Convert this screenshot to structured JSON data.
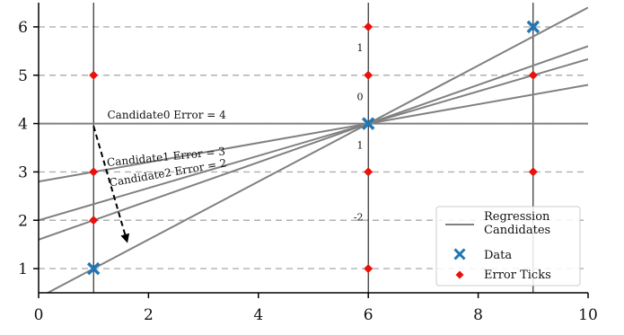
{
  "chart_data": {
    "type": "line",
    "xlim": [
      0,
      10
    ],
    "ylim": [
      0.5,
      6.5
    ],
    "x_ticks": [
      "0",
      "2",
      "4",
      "6",
      "8",
      "10"
    ],
    "y_ticks": [
      "1",
      "2",
      "3",
      "4",
      "5",
      "6"
    ],
    "grid": "horizontal dashed at y ticks",
    "vertical_lines_x": [
      1,
      6,
      9
    ],
    "data_points": [
      {
        "x": 1,
        "y": 1
      },
      {
        "x": 6,
        "y": 4
      },
      {
        "x": 9,
        "y": 6
      }
    ],
    "error_ticks": [
      {
        "x": 1,
        "y": 2
      },
      {
        "x": 1,
        "y": 3
      },
      {
        "x": 1,
        "y": 5
      },
      {
        "x": 6,
        "y": 1
      },
      {
        "x": 6,
        "y": 3
      },
      {
        "x": 6,
        "y": 5
      },
      {
        "x": 6,
        "y": 6
      },
      {
        "x": 9,
        "y": 3
      },
      {
        "x": 9,
        "y": 5
      }
    ],
    "regression_lines": [
      {
        "slope": 0,
        "intercept": 4
      },
      {
        "slope": 0.2,
        "intercept": 2.8
      },
      {
        "slope": 0.3333,
        "intercept": 2.0
      },
      {
        "slope": 0.4,
        "intercept": 1.6
      },
      {
        "slope": 0.6,
        "intercept": 0.4
      }
    ],
    "annotations": [
      {
        "text": "Candidate0 Error = 4",
        "x": 1.25,
        "y": 4.1,
        "angle": 0
      },
      {
        "text": "Candidate1 Error = 3",
        "x": 1.25,
        "y": 3.12,
        "angle": -5.5
      },
      {
        "text": "Candidate2 Error = 2",
        "x": 1.3,
        "y": 2.7,
        "angle": -9.7
      }
    ],
    "small_labels": [
      {
        "text": "1",
        "x": 5.85,
        "y": 5.5
      },
      {
        "text": "0",
        "x": 5.85,
        "y": 4.48
      },
      {
        "text": "1",
        "x": 5.85,
        "y": 3.48
      },
      {
        "text": "-2",
        "x": 5.82,
        "y": 2.0
      }
    ],
    "arrow": {
      "from": [
        1.0,
        3.95
      ],
      "to": [
        1.6,
        1.6
      ]
    },
    "legend": {
      "position": "lower-right",
      "entries": [
        {
          "label_line1": "Regression",
          "label_line2": "Candidates",
          "marker": "line"
        },
        {
          "label_line1": "Data",
          "marker": "x"
        },
        {
          "label_line1": "Error Ticks",
          "marker": "diamond"
        }
      ]
    },
    "colors": {
      "regression": "#808080",
      "data": "#1f77b4",
      "error": "#e8120c",
      "grid": "#b0b0b0",
      "axis": "#000000"
    }
  }
}
